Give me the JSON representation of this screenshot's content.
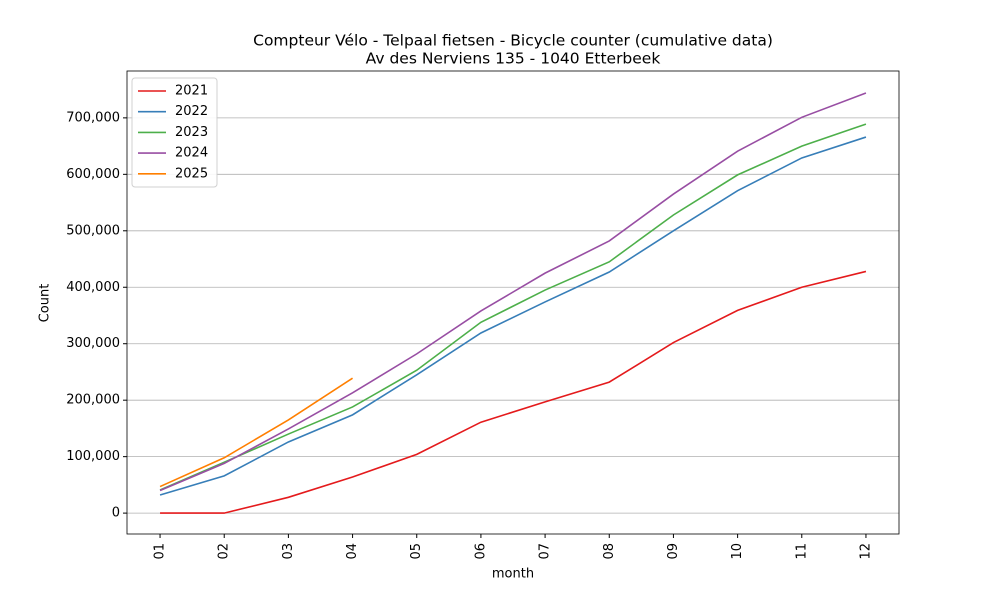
{
  "chart_data": {
    "type": "line",
    "title": "Compteur Vélo - Telpaal fietsen - Bicycle counter (cumulative data)",
    "subtitle": "Av des Nerviens 135 - 1040 Etterbeek",
    "x_label": "month",
    "y_label": "Count",
    "categories": [
      "01",
      "02",
      "03",
      "04",
      "05",
      "06",
      "07",
      "08",
      "09",
      "10",
      "11",
      "12"
    ],
    "series": [
      {
        "name": "2021",
        "color": "#e41a1c",
        "values": [
          0,
          0,
          28000,
          64000,
          104000,
          161000,
          197000,
          232000,
          302000,
          359000,
          400000,
          428000
        ]
      },
      {
        "name": "2022",
        "color": "#377eb8",
        "values": [
          32000,
          66000,
          126000,
          174000,
          245000,
          319000,
          374000,
          427000,
          500000,
          571000,
          629000,
          666000
        ]
      },
      {
        "name": "2023",
        "color": "#4daf4a",
        "values": [
          41000,
          90000,
          140000,
          188000,
          253000,
          338000,
          395000,
          445000,
          528000,
          599000,
          650000,
          689000
        ]
      },
      {
        "name": "2024",
        "color": "#984ea3",
        "values": [
          40000,
          88000,
          149000,
          213000,
          282000,
          358000,
          425000,
          482000,
          565000,
          641000,
          701000,
          744000
        ]
      },
      {
        "name": "2025",
        "color": "#ff7f00",
        "values": [
          47000,
          98000,
          165000,
          239000,
          null,
          null,
          null,
          null,
          null,
          null,
          null,
          null
        ]
      }
    ],
    "ylim": [
      -37000,
      783000
    ],
    "yticks": [
      0,
      {
        "value": 100000,
        "label": "100,000"
      },
      {
        "value": 200000,
        "label": "200,000"
      },
      {
        "value": 300000,
        "label": "300,000"
      },
      {
        "value": 400000,
        "label": "400,000"
      },
      {
        "value": 500000,
        "label": "500,000"
      },
      {
        "value": 600000,
        "label": "600,000"
      },
      {
        "value": 700000,
        "label": "700,000"
      }
    ],
    "grid": "y",
    "legend": "upper left"
  }
}
